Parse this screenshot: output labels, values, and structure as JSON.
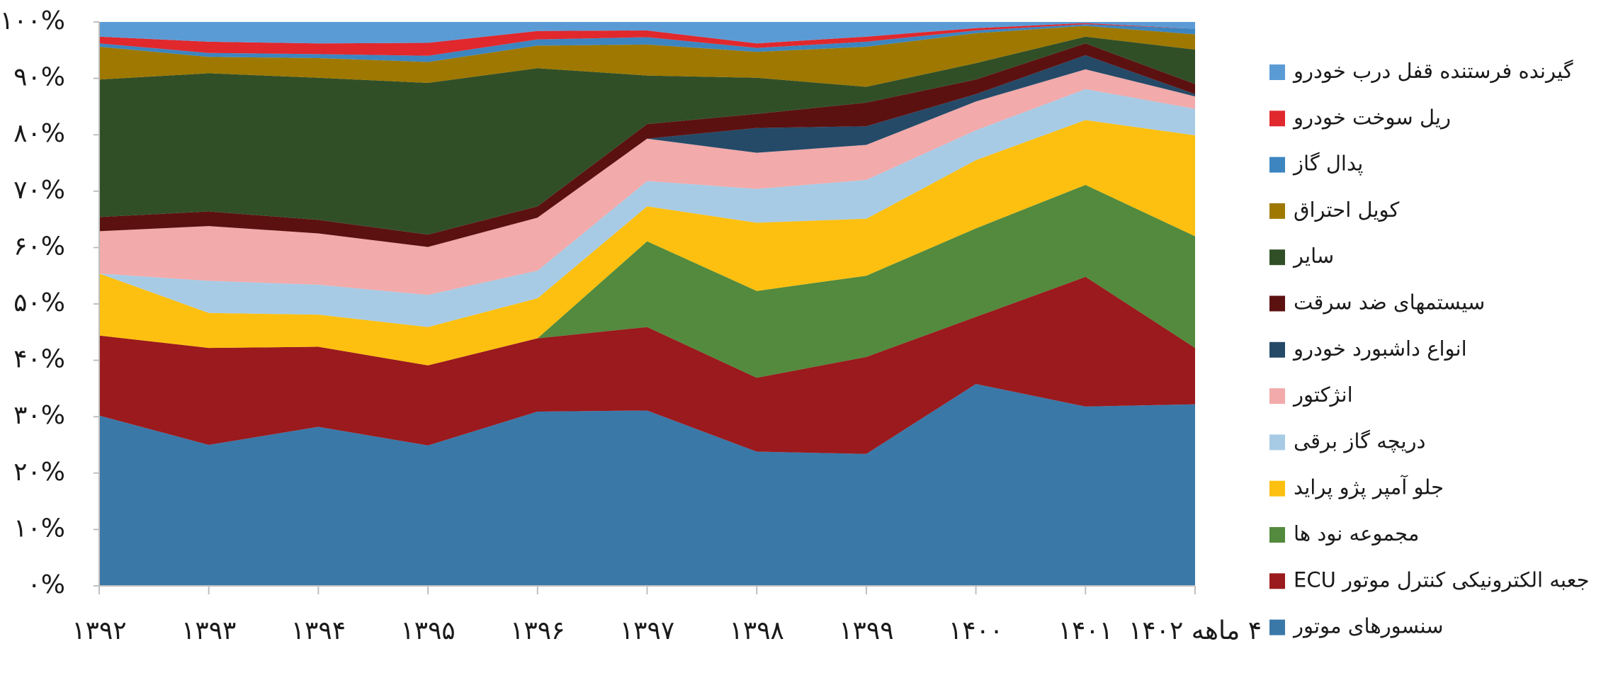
{
  "chart_data": {
    "type": "stacked_area",
    "categories": [
      "۱۳۹۲",
      "۱۳۹۳",
      "۱۳۹۴",
      "۱۳۹۵",
      "۱۳۹۶",
      "۱۳۹۷",
      "۱۳۹۸",
      "۱۳۹۹",
      "۱۴۰۰",
      "۱۴۰۱",
      "۴ ماهه ۱۴۰۲"
    ],
    "series": [
      {
        "name": "گیرنده فرستنده قفل درب خودرو",
        "color": "#5b9bd5",
        "values": [
          2.6,
          3.5,
          3.8,
          3.7,
          1.6,
          1.5,
          3.8,
          2.6,
          1.1,
          0.2,
          1.2
        ]
      },
      {
        "name": "ریل سوخت خودرو",
        "color": "#e0282d",
        "values": [
          1.2,
          2.0,
          1.9,
          2.3,
          1.5,
          1.2,
          0.8,
          0.9,
          0.4,
          0.2,
          0
        ]
      },
      {
        "name": "پدال گاز",
        "color": "#3c85c0",
        "values": [
          0.6,
          0.7,
          0.7,
          1.1,
          1.1,
          1.3,
          0.7,
          0.9,
          0.5,
          0.3,
          1.0
        ]
      },
      {
        "name": "کویل احتراق",
        "color": "#9e7800",
        "values": [
          5.8,
          2.9,
          3.5,
          3.7,
          4.0,
          5.5,
          4.6,
          7.1,
          5.3,
          1.9,
          2.7
        ]
      },
      {
        "name": "سایر",
        "color": "#314f27",
        "values": [
          24.4,
          24.5,
          25.2,
          26.9,
          24.5,
          8.6,
          6.4,
          2.8,
          2.9,
          1.2,
          6.1
        ]
      },
      {
        "name": "سیستمهای ضد سرقت",
        "color": "#5c1111",
        "values": [
          2.5,
          2.6,
          2.4,
          2.2,
          2.0,
          2.6,
          2.5,
          4.2,
          2.6,
          2.1,
          1.8
        ]
      },
      {
        "name": "انواع داشبورد خودرو",
        "color": "#244a68",
        "values": [
          0,
          0,
          0,
          0,
          0,
          0,
          4.4,
          3.3,
          1.3,
          2.5,
          0.4
        ]
      },
      {
        "name": "انژکتور",
        "color": "#f2aaaa",
        "values": [
          7.5,
          9.7,
          9.1,
          8.5,
          9.4,
          7.5,
          6.4,
          6.2,
          5.1,
          3.5,
          2.2
        ]
      },
      {
        "name": "دریچه گاز برقی",
        "color": "#a8cbe5",
        "values": [
          0,
          5.7,
          5.3,
          5.7,
          4.9,
          4.5,
          6.0,
          6.9,
          5.3,
          5.5,
          4.7
        ]
      },
      {
        "name": "جلو آمپر پژو پراید",
        "color": "#fdc010",
        "values": [
          11.0,
          6.2,
          5.7,
          6.8,
          7.1,
          6.2,
          12.1,
          10.1,
          12.1,
          11.5,
          17.9
        ]
      },
      {
        "name": "مجموعه نود ها",
        "color": "#538a3d",
        "values": [
          0,
          0,
          0,
          0,
          0,
          15.2,
          15.4,
          14.4,
          15.7,
          16.3,
          19.8
        ]
      },
      {
        "name": "جعبه الکترونیکی کنترل موتور ECU",
        "color": "#9a1a1d",
        "values": [
          14.2,
          17.2,
          14.2,
          14.2,
          13.0,
          14.8,
          13.1,
          17.2,
          11.9,
          23.0,
          10.0
        ]
      },
      {
        "name": "سنسورهای موتور",
        "color": "#3a78a8",
        "values": [
          30.2,
          25.0,
          28.2,
          24.9,
          30.9,
          31.1,
          23.8,
          23.4,
          35.8,
          31.8,
          32.2
        ]
      }
    ],
    "ylim": [
      0,
      100
    ],
    "yticks": [
      {
        "value": 0,
        "label": "۰%"
      },
      {
        "value": 10,
        "label": "۱۰%"
      },
      {
        "value": 20,
        "label": "۲۰%"
      },
      {
        "value": 30,
        "label": "۳۰%"
      },
      {
        "value": 40,
        "label": "۴۰%"
      },
      {
        "value": 50,
        "label": "۵۰%"
      },
      {
        "value": 60,
        "label": "۶۰%"
      },
      {
        "value": 70,
        "label": "۷۰%"
      },
      {
        "value": 80,
        "label": "۸۰%"
      },
      {
        "value": 90,
        "label": "۹۰%"
      },
      {
        "value": 100,
        "label": "۱۰۰%"
      }
    ],
    "legend": "right"
  }
}
